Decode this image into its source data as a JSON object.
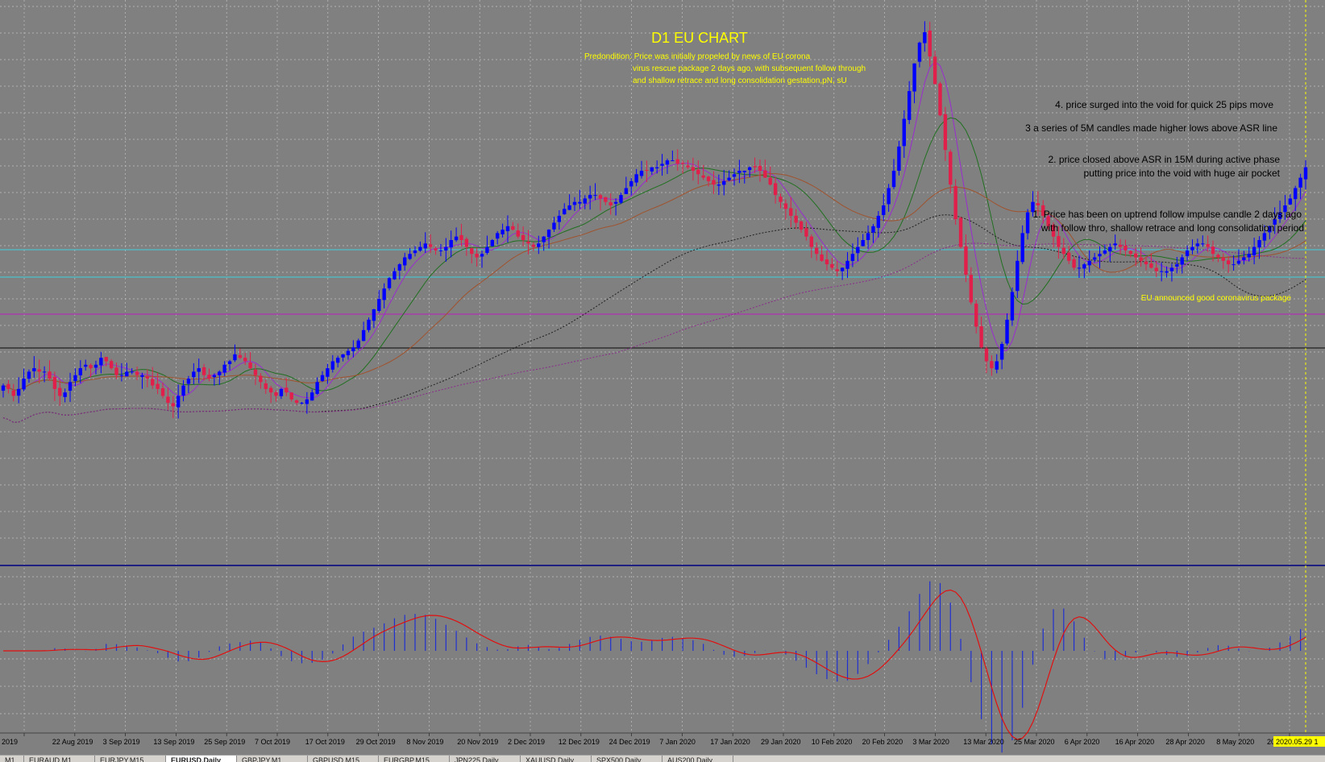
{
  "chart_data": {
    "type": "candlestick",
    "title": "D1 EU  CHART",
    "subtitle_lines": [
      "Predondition: Price was initially propeled by news of EU corona",
      "virus rescue package 2 days ago, with subsequent follow through",
      "and shallow retrace and long consolidation gestation,pN, sU"
    ],
    "annotations": [
      "4. price surged into the void for quick 25 pips move",
      "3 a series of 5M candles made higher lows above ASR line",
      "2. price closed above ASR in 15M during active phase",
      "putting price into the void with huge air pocket",
      "1. Price has been on uptrend follow impulse candle 2 days ago",
      "with follow thro, shallow retrace and long consolidation period"
    ],
    "event_label": "EU announced good coronavirus package",
    "x_tick_labels": [
      "2019",
      "22 Aug 2019",
      "3 Sep 2019",
      "13 Sep 2019",
      "25 Sep 2019",
      "7 Oct 2019",
      "17 Oct 2019",
      "29 Oct 2019",
      "8 Nov 2019",
      "20 Nov 2019",
      "2 Dec 2019",
      "12 Dec 2019",
      "24 Dec 2019",
      "7 Jan 2020",
      "17 Jan 2020",
      "29 Jan 2020",
      "10 Feb 2020",
      "20 Feb 2020",
      "3 Mar 2020",
      "13 Mar 2020",
      "25 Mar 2020",
      "6 Apr 2020",
      "16 Apr 2020",
      "28 Apr 2020",
      "8 May 2020",
      "20"
    ],
    "current_date_label": "2020.05.29 1",
    "price_path": [
      0.48,
      0.47,
      0.45,
      0.47,
      0.5,
      0.52,
      0.53,
      0.52,
      0.52,
      0.5,
      0.47,
      0.45,
      0.46,
      0.49,
      0.51,
      0.53,
      0.54,
      0.53,
      0.54,
      0.56,
      0.55,
      0.53,
      0.51,
      0.51,
      0.52,
      0.52,
      0.51,
      0.51,
      0.5,
      0.48,
      0.47,
      0.45,
      0.43,
      0.42,
      0.45,
      0.48,
      0.5,
      0.52,
      0.53,
      0.51,
      0.5,
      0.51,
      0.52,
      0.54,
      0.55,
      0.57,
      0.56,
      0.55,
      0.53,
      0.51,
      0.49,
      0.47,
      0.46,
      0.45,
      0.47,
      0.46,
      0.44,
      0.43,
      0.43,
      0.44,
      0.46,
      0.49,
      0.51,
      0.53,
      0.55,
      0.56,
      0.57,
      0.58,
      0.59,
      0.61,
      0.64,
      0.67,
      0.7,
      0.73,
      0.76,
      0.79,
      0.81,
      0.83,
      0.85,
      0.86,
      0.87,
      0.88,
      0.89,
      0.88,
      0.87,
      0.87,
      0.88,
      0.9,
      0.91,
      0.9,
      0.88,
      0.86,
      0.85,
      0.86,
      0.88,
      0.9,
      0.92,
      0.93,
      0.94,
      0.93,
      0.91,
      0.9,
      0.89,
      0.88,
      0.89,
      0.91,
      0.93,
      0.95,
      0.97,
      0.99,
      1.0,
      1.01,
      1.01,
      1.02,
      1.03,
      1.03,
      1.02,
      1.01,
      1.0,
      1.01,
      1.03,
      1.05,
      1.07,
      1.09,
      1.1,
      1.1,
      1.11,
      1.11,
      1.12,
      1.13,
      1.13,
      1.12,
      1.12,
      1.11,
      1.1,
      1.09,
      1.08,
      1.07,
      1.06,
      1.06,
      1.07,
      1.08,
      1.09,
      1.1,
      1.1,
      1.11,
      1.11,
      1.1,
      1.08,
      1.06,
      1.03,
      1.01,
      0.99,
      0.97,
      0.95,
      0.93,
      0.91,
      0.88,
      0.86,
      0.84,
      0.83,
      0.82,
      0.81,
      0.82,
      0.84,
      0.86,
      0.88,
      0.9,
      0.92,
      0.94,
      0.97,
      1.0,
      1.05,
      1.1,
      1.17,
      1.25,
      1.33,
      1.41,
      1.47,
      1.5,
      1.43,
      1.35,
      1.26,
      1.16,
      1.06,
      0.96,
      0.88,
      0.8,
      0.72,
      0.65,
      0.59,
      0.55,
      0.53,
      0.55,
      0.6,
      0.67,
      0.75,
      0.84,
      0.92,
      0.98,
      1.01,
      1.0,
      0.97,
      0.94,
      0.91,
      0.88,
      0.86,
      0.84,
      0.82,
      0.82,
      0.83,
      0.84,
      0.85,
      0.86,
      0.87,
      0.88,
      0.89,
      0.88,
      0.87,
      0.86,
      0.85,
      0.84,
      0.83,
      0.82,
      0.81,
      0.81,
      0.81,
      0.82,
      0.83,
      0.85,
      0.87,
      0.88,
      0.89,
      0.89,
      0.88,
      0.86,
      0.85,
      0.84,
      0.83,
      0.83,
      0.84,
      0.85,
      0.86,
      0.88,
      0.9,
      0.92,
      0.94,
      0.96,
      0.98,
      1.0,
      1.02,
      1.05,
      1.08,
      1.11
    ]
  },
  "tabs": [
    "M1",
    "EURAUD,M1",
    "EURJPY,M15",
    "EURUSD,Daily",
    "GBPJPY,M1",
    "GBPUSD,M15",
    "EURGBP,M15",
    "JPN225,Daily",
    "XAUUSD,Daily",
    "SPX500,Daily",
    "AUS200,Daily"
  ],
  "active_tab": "EURUSD,Daily",
  "colors": {
    "background": "#808080",
    "grid": "#c0c0c0",
    "bull_candle": "#0000ff",
    "bear_candle": "#e0204a",
    "title": "#ffff00",
    "annotation": "#000000",
    "ma_fast": "#9a2bd0",
    "ma_mid": "#207020",
    "ma_slow": "#a0522d",
    "ma_dotted_black": "#202020",
    "ma_dotted_purple": "#8a2b8a",
    "level_cyan": "#40d0e0",
    "level_magenta": "#b030b0",
    "level_black": "#202020",
    "macd_hist": "#2030d0",
    "macd_signal": "#e01010",
    "divider": "#202080"
  }
}
